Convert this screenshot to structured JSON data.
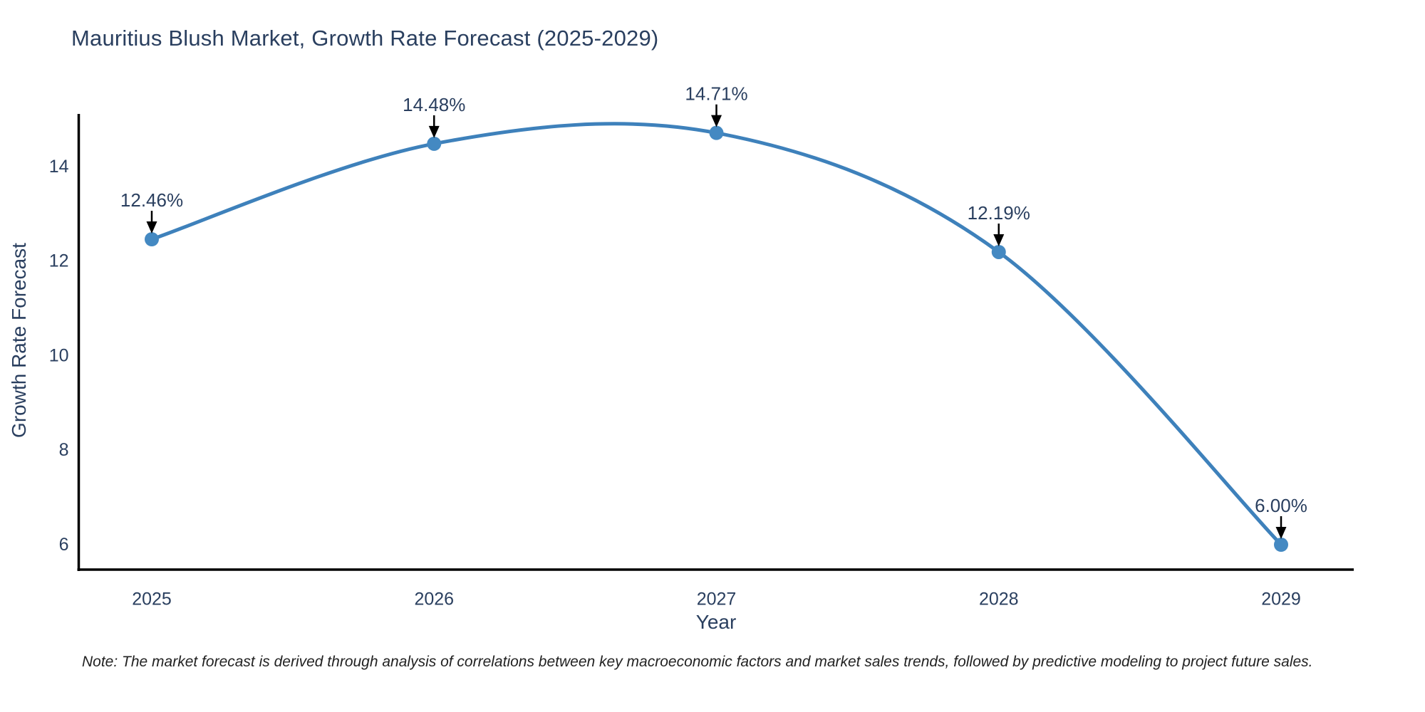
{
  "title": "Mauritius Blush Market, Growth Rate Forecast (2025-2029)",
  "note": "Note: The market forecast is derived through analysis of correlations between key macroeconomic factors and market sales trends, followed by predictive modeling to project future sales.",
  "colors": {
    "line": "#3e81bb",
    "marker": "#4489c2",
    "axis": "#000000",
    "title_text": "#2a3f5f",
    "tick_text": "#2a3f5f",
    "annotation_text": "#2a3f5f",
    "arrow": "#000000",
    "note_text": "#222222",
    "background": "#ffffff"
  },
  "chart_data": {
    "type": "line",
    "title": "Mauritius Blush Market, Growth Rate Forecast (2025-2029)",
    "xlabel": "Year",
    "ylabel": "Growth Rate Forecast",
    "x": [
      2025,
      2026,
      2027,
      2028,
      2029
    ],
    "y": [
      12.46,
      14.48,
      14.71,
      12.19,
      6.0
    ],
    "point_labels": [
      "12.46%",
      "14.48%",
      "14.71%",
      "12.19%",
      "6.00%"
    ],
    "xticks": [
      "2025",
      "2026",
      "2027",
      "2028",
      "2029"
    ],
    "yticks": [
      6,
      8,
      10,
      12,
      14
    ],
    "ylim": [
      5.44,
      15.1
    ],
    "xlim": [
      2024.74,
      2029.26
    ],
    "grid": false,
    "legend_position": "none",
    "line_shape": "spline",
    "markers": true
  }
}
